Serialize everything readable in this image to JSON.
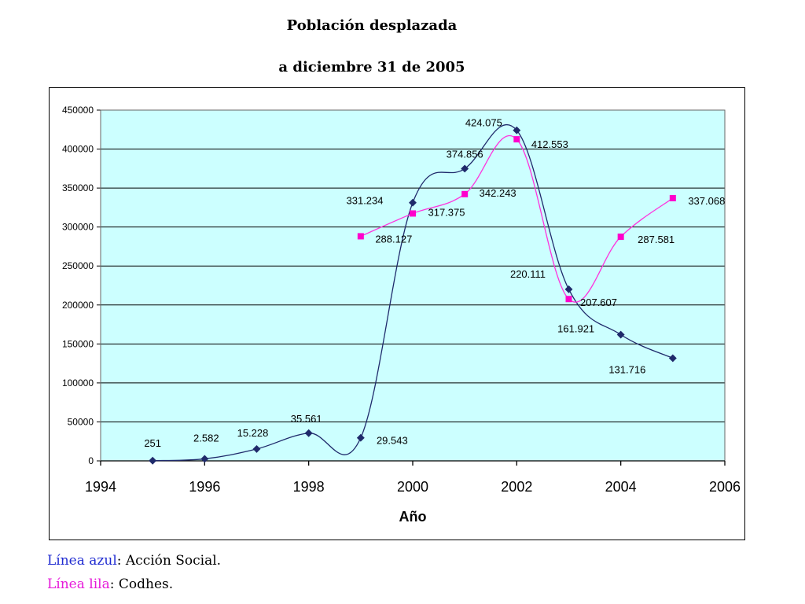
{
  "title_line1": "Población desplazada",
  "title_line2": "a diciembre 31 de 2005",
  "colors": {
    "plot_bg": "#ccffff",
    "blue_line": "#1f2a6b",
    "pink_line": "#ff33dd",
    "pink_marker": "#ff00cc",
    "legend_blue": "#1f2bd1",
    "legend_pink": "#e619d9"
  },
  "legend": [
    {
      "key": "Línea azul",
      "sep": ": ",
      "value": "Acción Social."
    },
    {
      "key": "Línea lila",
      "sep": ": ",
      "value": "Codhes."
    }
  ],
  "chart_data": {
    "type": "line",
    "title": "",
    "xlabel": "Año",
    "ylabel": "",
    "xlim": [
      1994,
      2006
    ],
    "ylim": [
      0,
      450000
    ],
    "xticks": [
      1994,
      1996,
      1998,
      2000,
      2002,
      2004,
      2006
    ],
    "yticks": [
      0,
      50000,
      100000,
      150000,
      200000,
      250000,
      300000,
      350000,
      400000,
      450000
    ],
    "grid": "horizontal",
    "series": [
      {
        "name": "Acción Social",
        "marker": "diamond",
        "x": [
          1995,
          1996,
          1997,
          1998,
          1999,
          2000,
          2001,
          2002,
          2003,
          2004,
          2005
        ],
        "y": [
          251,
          2582,
          15228,
          35561,
          29543,
          331234,
          374856,
          424075,
          220111,
          161921,
          131716
        ],
        "labels": [
          "251",
          "2.582",
          "15.228",
          "35.561",
          "29.543",
          "331.234",
          "374.856",
          "424.075",
          "220.111",
          "161.921",
          "131.716"
        ]
      },
      {
        "name": "Codhes",
        "marker": "square",
        "x": [
          1999,
          2000,
          2001,
          2002,
          2003,
          2004,
          2005
        ],
        "y": [
          288127,
          317375,
          342243,
          412553,
          207607,
          287581,
          337068
        ],
        "labels": [
          "288.127",
          "317.375",
          "342.243",
          "412.553",
          "207.607",
          "287.581",
          "337.068"
        ]
      }
    ]
  }
}
